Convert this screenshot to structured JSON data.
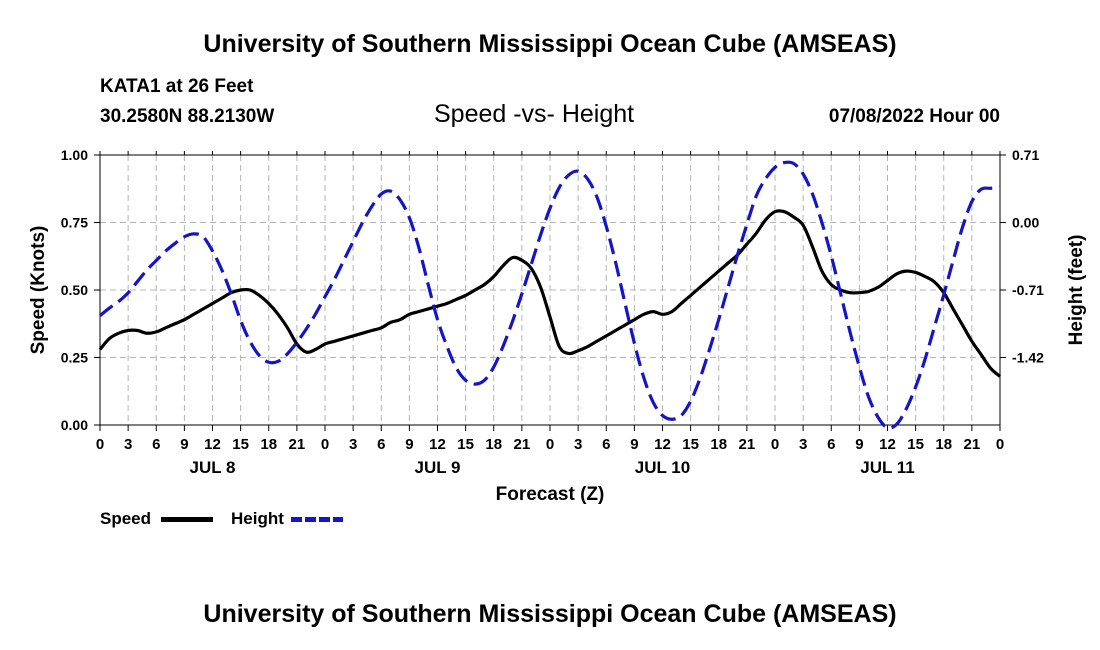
{
  "header": {
    "title_top": "University of Southern Mississippi Ocean Cube (AMSEAS)",
    "station_line1": "KATA1 at 26 Feet",
    "station_line2": "30.2580N  88.2130W",
    "subtitle": "Speed -vs- Height",
    "issued": "07/08/2022 Hour 00"
  },
  "footer": {
    "title_bottom": "University of Southern Mississippi Ocean Cube (AMSEAS)"
  },
  "legend": {
    "speed_label": "Speed",
    "height_label": "Height"
  },
  "colors": {
    "speed": "#000000",
    "height": "#1515c8",
    "grid": "#b4b4b4"
  },
  "chart_data": {
    "type": "line",
    "xlabel": "Forecast (Z)",
    "ylabel_left": "Speed (Knots)",
    "ylabel_right": "Height (feet)",
    "x_range": [
      0,
      96
    ],
    "x_ticks": [
      0,
      3,
      6,
      9,
      12,
      15,
      18,
      21,
      24,
      27,
      30,
      33,
      36,
      39,
      42,
      45,
      48,
      51,
      54,
      57,
      60,
      63,
      66,
      69,
      72,
      75,
      78,
      81,
      84,
      87,
      90,
      93,
      96
    ],
    "x_tick_labels": [
      "0",
      "3",
      "6",
      "9",
      "12",
      "15",
      "18",
      "21",
      "0",
      "3",
      "6",
      "9",
      "12",
      "15",
      "18",
      "21",
      "0",
      "3",
      "6",
      "9",
      "12",
      "15",
      "18",
      "21",
      "0",
      "3",
      "6",
      "9",
      "12",
      "15",
      "18",
      "21",
      "0"
    ],
    "day_labels": [
      {
        "label": "JUL 8",
        "hour": 12
      },
      {
        "label": "JUL 9",
        "hour": 36
      },
      {
        "label": "JUL 10",
        "hour": 60
      },
      {
        "label": "JUL 11",
        "hour": 84
      }
    ],
    "y_left": {
      "range": [
        0,
        1
      ],
      "ticks": [
        0,
        0.25,
        0.5,
        0.75,
        1
      ],
      "tick_labels": [
        "0.00",
        "0.25",
        "0.50",
        "0.75",
        "1.00"
      ]
    },
    "y_right": {
      "range": [
        -2.13,
        0.71
      ],
      "ticks": [
        0.71,
        0,
        -0.71,
        -1.42
      ],
      "tick_labels": [
        "0.71",
        "0.00",
        "-0.71",
        "-1.42"
      ]
    },
    "series": [
      {
        "name": "Speed",
        "axis": "left",
        "style": "solid",
        "x": [
          0,
          1,
          2,
          3,
          4,
          5,
          6,
          7,
          8,
          9,
          10,
          11,
          12,
          13,
          14,
          15,
          16,
          17,
          18,
          19,
          20,
          21,
          22,
          23,
          24,
          25,
          26,
          27,
          28,
          29,
          30,
          31,
          32,
          33,
          34,
          35,
          36,
          37,
          38,
          39,
          40,
          41,
          42,
          43,
          44,
          45,
          46,
          47,
          48,
          49,
          50,
          51,
          52,
          53,
          54,
          55,
          56,
          57,
          58,
          59,
          60,
          61,
          62,
          63,
          64,
          65,
          66,
          67,
          68,
          69,
          70,
          71,
          72,
          73,
          74,
          75,
          76,
          77,
          78,
          79,
          80,
          81,
          82,
          83,
          84,
          85,
          86,
          87,
          88,
          89,
          90,
          91,
          92,
          93,
          94,
          95,
          96
        ],
        "values": [
          0.28,
          0.32,
          0.34,
          0.35,
          0.35,
          0.34,
          0.345,
          0.36,
          0.375,
          0.39,
          0.41,
          0.43,
          0.45,
          0.47,
          0.49,
          0.5,
          0.5,
          0.48,
          0.45,
          0.41,
          0.36,
          0.3,
          0.27,
          0.28,
          0.3,
          0.31,
          0.32,
          0.33,
          0.34,
          0.35,
          0.36,
          0.38,
          0.39,
          0.41,
          0.42,
          0.43,
          0.44,
          0.45,
          0.465,
          0.48,
          0.5,
          0.52,
          0.55,
          0.59,
          0.62,
          0.61,
          0.58,
          0.51,
          0.4,
          0.29,
          0.265,
          0.275,
          0.29,
          0.31,
          0.33,
          0.35,
          0.37,
          0.39,
          0.41,
          0.42,
          0.41,
          0.42,
          0.45,
          0.48,
          0.51,
          0.54,
          0.57,
          0.6,
          0.63,
          0.67,
          0.71,
          0.76,
          0.79,
          0.79,
          0.77,
          0.74,
          0.66,
          0.57,
          0.52,
          0.5,
          0.49,
          0.49,
          0.495,
          0.51,
          0.535,
          0.56,
          0.57,
          0.565,
          0.55,
          0.53,
          0.49,
          0.43,
          0.37,
          0.31,
          0.26,
          0.21,
          0.18
        ]
      },
      {
        "name": "Height",
        "axis": "right",
        "style": "dashed",
        "x": [
          0,
          1,
          2,
          3,
          4,
          5,
          6,
          7,
          8,
          9,
          10,
          11,
          12,
          13,
          14,
          15,
          16,
          17,
          18,
          19,
          20,
          21,
          22,
          23,
          24,
          25,
          26,
          27,
          28,
          29,
          30,
          31,
          32,
          33,
          34,
          35,
          36,
          37,
          38,
          39,
          40,
          41,
          42,
          43,
          44,
          45,
          46,
          47,
          48,
          49,
          50,
          51,
          52,
          53,
          54,
          55,
          56,
          57,
          58,
          59,
          60,
          61,
          62,
          63,
          64,
          65,
          66,
          67,
          68,
          69,
          70,
          71,
          72,
          73,
          74,
          75,
          76,
          77,
          78,
          79,
          80,
          81,
          82,
          83,
          84,
          85,
          86,
          87,
          88,
          89,
          90,
          91,
          92,
          93,
          94,
          95,
          96
        ],
        "values": [
          -0.98,
          -0.9,
          -0.83,
          -0.74,
          -0.62,
          -0.5,
          -0.4,
          -0.3,
          -0.22,
          -0.15,
          -0.12,
          -0.15,
          -0.3,
          -0.5,
          -0.75,
          -1.03,
          -1.25,
          -1.4,
          -1.47,
          -1.46,
          -1.38,
          -1.26,
          -1.12,
          -0.96,
          -0.78,
          -0.6,
          -0.4,
          -0.2,
          0.0,
          0.17,
          0.3,
          0.33,
          0.24,
          0.05,
          -0.26,
          -0.65,
          -1.02,
          -1.3,
          -1.53,
          -1.66,
          -1.7,
          -1.66,
          -1.52,
          -1.3,
          -1.04,
          -0.75,
          -0.44,
          -0.13,
          0.15,
          0.37,
          0.5,
          0.54,
          0.46,
          0.27,
          -0.04,
          -0.42,
          -0.85,
          -1.27,
          -1.63,
          -1.89,
          -2.03,
          -2.07,
          -2.03,
          -1.88,
          -1.64,
          -1.34,
          -1.02,
          -0.68,
          -0.34,
          -0.02,
          0.28,
          0.46,
          0.58,
          0.63,
          0.62,
          0.51,
          0.3,
          0.0,
          -0.35,
          -0.75,
          -1.15,
          -1.52,
          -1.84,
          -2.05,
          -2.16,
          -2.12,
          -1.96,
          -1.73,
          -1.44,
          -1.1,
          -0.76,
          -0.4,
          -0.05,
          0.22,
          0.35,
          0.36,
          0.37
        ]
      }
    ]
  }
}
